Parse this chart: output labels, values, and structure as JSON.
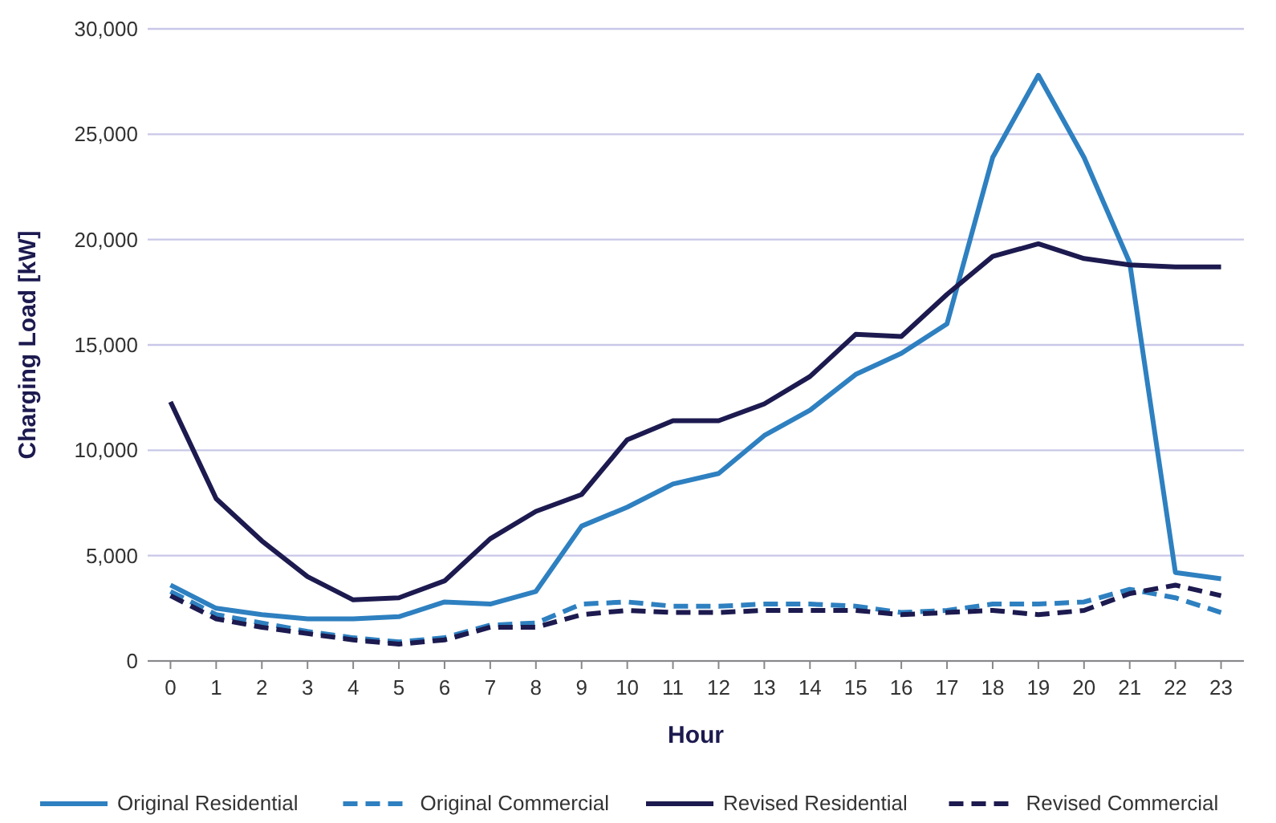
{
  "chart_data": {
    "type": "line",
    "xlabel": "Hour",
    "ylabel": "Charging Load [kW]",
    "x": [
      0,
      1,
      2,
      3,
      4,
      5,
      6,
      7,
      8,
      9,
      10,
      11,
      12,
      13,
      14,
      15,
      16,
      17,
      18,
      19,
      20,
      21,
      22,
      23
    ],
    "xlim": [
      -0.5,
      23.5
    ],
    "xticks": [
      0,
      1,
      2,
      3,
      4,
      5,
      6,
      7,
      8,
      9,
      10,
      11,
      12,
      13,
      14,
      15,
      16,
      17,
      18,
      19,
      20,
      21,
      22,
      23
    ],
    "ylim": [
      0,
      30000
    ],
    "yticks": [
      {
        "value": 0,
        "label": "0"
      },
      {
        "value": 5000,
        "label": "5,000"
      },
      {
        "value": 10000,
        "label": "10,000"
      },
      {
        "value": 15000,
        "label": "15,000"
      },
      {
        "value": 20000,
        "label": "20,000"
      },
      {
        "value": 25000,
        "label": "25,000"
      },
      {
        "value": 30000,
        "label": "30,000"
      }
    ],
    "grid": "y",
    "legend": "bottom",
    "marker": "none",
    "series": [
      {
        "name": "Original Residential",
        "color": "#2e80c0",
        "line_style": "solid",
        "values": [
          3600,
          2500,
          2200,
          2000,
          2000,
          2100,
          2800,
          2700,
          3300,
          6400,
          7300,
          8400,
          8900,
          10700,
          11900,
          13600,
          14600,
          16000,
          23900,
          27800,
          23900,
          18900,
          4200,
          3900
        ]
      },
      {
        "name": "Original Commercial",
        "color": "#2e80c0",
        "line_style": "dashed",
        "values": [
          3300,
          2200,
          1800,
          1400,
          1100,
          900,
          1100,
          1700,
          1800,
          2700,
          2800,
          2600,
          2600,
          2700,
          2700,
          2600,
          2300,
          2400,
          2700,
          2700,
          2800,
          3400,
          3000,
          2300
        ]
      },
      {
        "name": "Revised Residential",
        "color": "#1c1a4f",
        "line_style": "solid",
        "values": [
          12300,
          7700,
          5700,
          4000,
          2900,
          3000,
          3800,
          5800,
          7100,
          7900,
          10500,
          11400,
          11400,
          12200,
          13500,
          15500,
          15400,
          17400,
          19200,
          19800,
          19100,
          18800,
          18700,
          18700
        ]
      },
      {
        "name": "Revised Commercial",
        "color": "#1c1a4f",
        "line_style": "dashed",
        "values": [
          3100,
          2000,
          1600,
          1300,
          1000,
          800,
          1000,
          1600,
          1600,
          2200,
          2400,
          2300,
          2300,
          2400,
          2400,
          2400,
          2200,
          2300,
          2400,
          2200,
          2400,
          3200,
          3600,
          3100
        ]
      }
    ]
  }
}
